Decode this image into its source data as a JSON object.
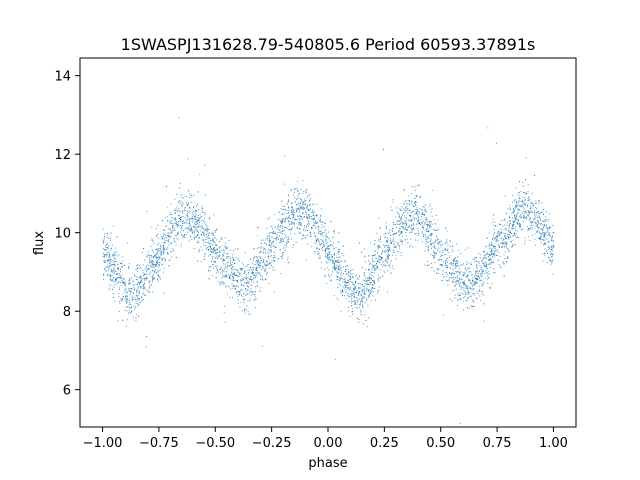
{
  "chart_data": {
    "type": "scatter",
    "title": "1SWASPJ131628.79-540805.6 Period 60593.37891s",
    "xlabel": "phase",
    "ylabel": "flux",
    "xlim": [
      -1.1,
      1.1
    ],
    "ylim": [
      5.05,
      14.45
    ],
    "xticks": [
      -1.0,
      -0.75,
      -0.5,
      -0.25,
      0.0,
      0.25,
      0.5,
      0.75,
      1.0
    ],
    "xtick_labels": [
      "−1.00",
      "−0.75",
      "−0.50",
      "−0.25",
      "0.00",
      "0.25",
      "0.50",
      "0.75",
      "1.00"
    ],
    "yticks": [
      6,
      8,
      10,
      12,
      14
    ],
    "ytick_labels": [
      "6",
      "8",
      "10",
      "12",
      "14"
    ],
    "grid": false,
    "marker_color": "#1f77b4",
    "series": [
      {
        "x": [
          -1.0,
          -0.9,
          -0.875,
          -0.85,
          -0.75,
          -0.65,
          -0.6,
          -0.5,
          -0.4,
          -0.375,
          -0.35,
          -0.25,
          -0.15,
          -0.125,
          -0.1,
          0.0,
          0.1,
          0.125,
          0.15,
          0.25,
          0.35,
          0.4,
          0.5,
          0.6,
          0.625,
          0.65,
          0.75,
          0.85,
          0.875,
          0.9,
          1.0
        ],
        "y": [
          9.6,
          8.5,
          8.35,
          8.5,
          9.5,
          10.45,
          10.4,
          9.5,
          8.75,
          8.7,
          8.75,
          9.7,
          10.5,
          10.5,
          10.5,
          9.6,
          8.5,
          8.35,
          8.5,
          9.5,
          10.45,
          10.4,
          9.5,
          8.75,
          8.7,
          8.75,
          9.7,
          10.5,
          10.5,
          10.5,
          9.6
        ]
      }
    ]
  }
}
